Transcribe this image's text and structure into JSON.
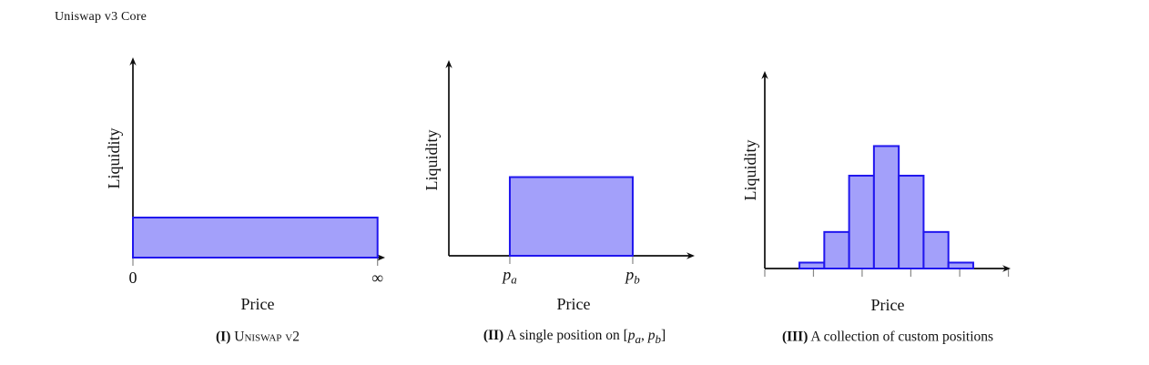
{
  "page": {
    "header": "Uniswap v3 Core"
  },
  "colors": {
    "bar_fill": "#a3a0fa",
    "bar_stroke": "#2016ee",
    "axis": "#0d0d0d",
    "tick": "#888888",
    "text": "#111111"
  },
  "chart_data": [
    {
      "type": "bar",
      "panel": "I",
      "ylabel": "Liquidity",
      "xlabel": "Price",
      "caption": {
        "index": "(I)",
        "parts": [
          {
            "t": "Uniswap v2",
            "sc": true
          }
        ]
      },
      "bars": [
        {
          "x0": 0.0,
          "x1": 0.97,
          "h": 0.2
        }
      ],
      "ticks": [
        {
          "x": 0.0,
          "parts": [
            {
              "t": "0"
            }
          ]
        },
        {
          "x": 0.97,
          "parts": [
            {
              "t": "∞"
            }
          ]
        }
      ],
      "x_axis": {
        "min_label": "0",
        "max_label": "∞"
      },
      "grid": false,
      "legend": false
    },
    {
      "type": "bar",
      "panel": "II",
      "ylabel": "Liquidity",
      "xlabel": "Price",
      "caption": {
        "index": "(II)",
        "parts": [
          {
            "t": "A single position on ["
          },
          {
            "t": "p",
            "it": true
          },
          {
            "t": "a",
            "it": true,
            "sub": true
          },
          {
            "t": ", "
          },
          {
            "t": "p",
            "it": true
          },
          {
            "t": "b",
            "it": true,
            "sub": true
          },
          {
            "t": "]"
          }
        ]
      },
      "bars": [
        {
          "x0": 0.248,
          "x1": 0.748,
          "h": 0.402
        }
      ],
      "ticks": [
        {
          "x": 0.248,
          "parts": [
            {
              "t": "p",
              "it": true
            },
            {
              "t": "a",
              "it": true,
              "sub": true
            }
          ]
        },
        {
          "x": 0.748,
          "parts": [
            {
              "t": "p",
              "it": true
            },
            {
              "t": "b",
              "it": true,
              "sub": true
            }
          ]
        }
      ],
      "grid": false,
      "legend": false
    },
    {
      "type": "bar",
      "panel": "III",
      "ylabel": "Liquidity",
      "xlabel": "Price",
      "caption": {
        "index": "(III)",
        "parts": [
          {
            "t": "A collection of custom positions"
          }
        ]
      },
      "bars": [
        {
          "x0": 0.141,
          "x1": 0.242,
          "h": 0.03
        },
        {
          "x0": 0.242,
          "x1": 0.343,
          "h": 0.185
        },
        {
          "x0": 0.343,
          "x1": 0.444,
          "h": 0.47
        },
        {
          "x0": 0.444,
          "x1": 0.545,
          "h": 0.62
        },
        {
          "x0": 0.545,
          "x1": 0.646,
          "h": 0.47
        },
        {
          "x0": 0.646,
          "x1": 0.747,
          "h": 0.185
        },
        {
          "x0": 0.747,
          "x1": 0.848,
          "h": 0.03
        }
      ],
      "ticks": [
        {
          "x": 0.0
        },
        {
          "x": 0.198
        },
        {
          "x": 0.396
        },
        {
          "x": 0.594
        },
        {
          "x": 0.793
        },
        {
          "x": 0.991
        }
      ],
      "grid": false,
      "legend": false
    }
  ]
}
